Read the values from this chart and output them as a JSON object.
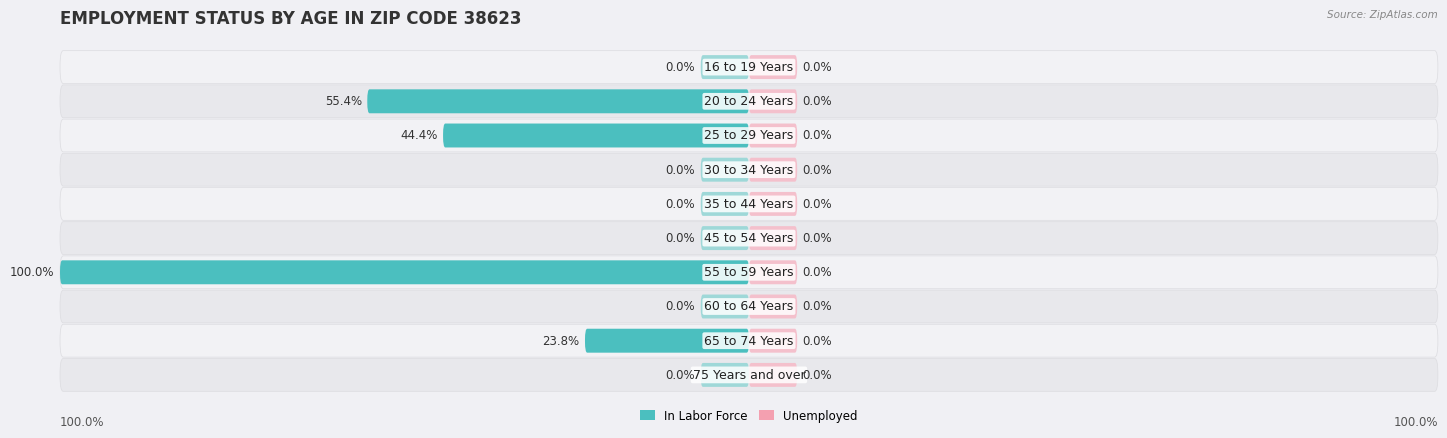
{
  "title": "EMPLOYMENT STATUS BY AGE IN ZIP CODE 38623",
  "source": "Source: ZipAtlas.com",
  "categories": [
    "16 to 19 Years",
    "20 to 24 Years",
    "25 to 29 Years",
    "30 to 34 Years",
    "35 to 44 Years",
    "45 to 54 Years",
    "55 to 59 Years",
    "60 to 64 Years",
    "65 to 74 Years",
    "75 Years and over"
  ],
  "labor_force": [
    0.0,
    55.4,
    44.4,
    0.0,
    0.0,
    0.0,
    100.0,
    0.0,
    23.8,
    0.0
  ],
  "unemployed": [
    0.0,
    0.0,
    0.0,
    0.0,
    0.0,
    0.0,
    0.0,
    0.0,
    0.0,
    0.0
  ],
  "labor_force_color": "#4BBFBF",
  "labor_force_stub_color": "#9ED8D8",
  "unemployed_color": "#F4A0B0",
  "unemployed_stub_color": "#F4C0CC",
  "row_bg_light": "#F2F2F5",
  "row_bg_dark": "#E8E8EC",
  "axis_label_left": "100.0%",
  "axis_label_right": "100.0%",
  "legend_labor": "In Labor Force",
  "legend_unemployed": "Unemployed",
  "title_fontsize": 12,
  "label_fontsize": 8.5,
  "category_fontsize": 9,
  "max_val": 100.0,
  "stub_val": 7.0,
  "background_color": "#F0F0F4"
}
